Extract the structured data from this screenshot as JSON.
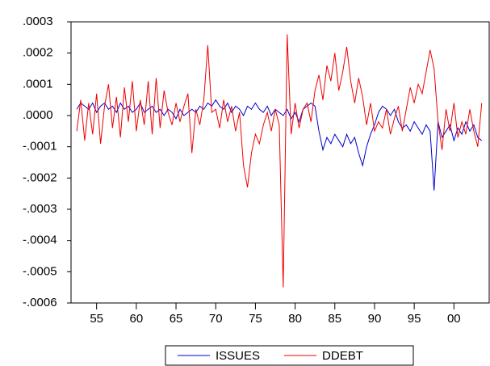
{
  "chart_data": {
    "type": "line",
    "x": [
      52.5,
      53,
      53.5,
      54,
      54.5,
      55,
      55.5,
      56,
      56.5,
      57,
      57.5,
      58,
      58.5,
      59,
      59.5,
      60,
      60.5,
      61,
      61.5,
      62,
      62.5,
      63,
      63.5,
      64,
      64.5,
      65,
      65.5,
      66,
      66.5,
      67,
      67.5,
      68,
      68.5,
      69,
      69.5,
      70,
      70.5,
      71,
      71.5,
      72,
      72.5,
      73,
      73.5,
      74,
      74.5,
      75,
      75.5,
      76,
      76.5,
      77,
      77.5,
      78,
      78.5,
      79,
      79.5,
      80,
      80.5,
      81,
      81.5,
      82,
      82.5,
      83,
      83.5,
      84,
      84.5,
      85,
      85.5,
      86,
      86.5,
      87,
      87.5,
      88,
      88.5,
      89,
      89.5,
      90,
      90.5,
      91,
      91.5,
      92,
      92.5,
      93,
      93.5,
      94,
      94.5,
      95,
      95.5,
      96,
      96.5,
      97,
      97.5,
      98,
      98.5,
      99,
      99.5,
      100,
      100.5,
      101,
      101.5,
      102,
      102.5,
      103,
      103.5
    ],
    "series": [
      {
        "name": "ISSUES",
        "color": "#0000cc",
        "values": [
          2e-05,
          4e-05,
          3e-05,
          2e-05,
          4e-05,
          1e-05,
          3e-05,
          4e-05,
          2e-05,
          3e-05,
          1e-05,
          4e-05,
          2e-05,
          3e-05,
          1e-05,
          2e-05,
          4e-05,
          1e-05,
          2e-05,
          3e-05,
          1e-05,
          2e-05,
          0,
          2e-05,
          1e-05,
          -1e-05,
          2e-05,
          0,
          1e-05,
          2e-05,
          1e-05,
          3e-05,
          2e-05,
          4e-05,
          3e-05,
          5e-05,
          3e-05,
          2e-05,
          4e-05,
          1e-05,
          3e-05,
          2e-05,
          0,
          3e-05,
          2e-05,
          4e-05,
          2e-05,
          1e-05,
          3e-05,
          0,
          2e-05,
          1e-05,
          0,
          2e-05,
          -1e-05,
          1e-05,
          -2e-05,
          2e-05,
          3e-05,
          4e-05,
          3e-05,
          -5e-05,
          -0.00011,
          -7e-05,
          -9e-05,
          -6e-05,
          -8e-05,
          -0.0001,
          -6e-05,
          -9e-05,
          -7e-05,
          -0.00012,
          -0.00016,
          -0.0001,
          -6e-05,
          -3e-05,
          1e-05,
          3e-05,
          2e-05,
          0,
          2e-05,
          -2e-05,
          -4e-05,
          -3e-05,
          -5e-05,
          -2e-05,
          -4e-05,
          -6e-05,
          -3e-05,
          -5e-05,
          -0.00024,
          -2e-05,
          -7e-05,
          -5e-05,
          -3e-05,
          -8e-05,
          -4e-05,
          -6e-05,
          -2e-05,
          -5e-05,
          -3e-05,
          -7e-05,
          -8e-05
        ]
      },
      {
        "name": "DDEBT",
        "color": "#ee0000",
        "values": [
          -5e-05,
          5e-05,
          -8e-05,
          4e-05,
          -6e-05,
          7e-05,
          -9e-05,
          3e-05,
          0.0001,
          -4e-05,
          6e-05,
          -7e-05,
          9e-05,
          -2e-05,
          0.00011,
          -5e-05,
          5e-05,
          -3e-05,
          0.00011,
          -6e-05,
          0.00012,
          -4e-05,
          8e-05,
          1e-05,
          -3e-05,
          4e-05,
          -2e-05,
          3e-05,
          7e-05,
          -0.00012,
          2e-05,
          -3e-05,
          5e-05,
          0.000225,
          1e-05,
          2e-05,
          -4e-05,
          5e-05,
          -2e-05,
          3e-05,
          -5e-05,
          1e-05,
          -0.00016,
          -0.00023,
          -0.00012,
          -6e-05,
          -9e-05,
          -3e-05,
          1e-05,
          -5e-05,
          2e-05,
          -3e-05,
          -0.00055,
          0.00026,
          -6e-05,
          4e-05,
          -4e-05,
          2e-05,
          4e-05,
          -2e-05,
          8e-05,
          0.00013,
          5e-05,
          0.00016,
          0.00011,
          0.0002,
          8e-05,
          0.00014,
          0.00022,
          0.00011,
          4e-05,
          0.00012,
          6e-05,
          -3e-05,
          4e-05,
          -5e-05,
          -2e-05,
          -4e-05,
          2e-05,
          -6e-05,
          -1e-05,
          3e-05,
          -5e-05,
          2e-05,
          9e-05,
          4e-05,
          0.0001,
          7e-05,
          0.00014,
          0.00021,
          0.00015,
          -2e-05,
          -0.00011,
          2e-05,
          -5e-05,
          4e-05,
          -7e-05,
          -2e-05,
          -6e-05,
          2e-05,
          -5e-05,
          -0.0001,
          4e-05
        ]
      }
    ],
    "xlim": [
      51.78,
      104.44
    ],
    "xticks": [
      55,
      60,
      65,
      70,
      75,
      80,
      85,
      90,
      95,
      {
        "value": 100,
        "label": "00"
      }
    ],
    "ylim": [
      -0.0006,
      0.0003
    ],
    "yticks": [
      {
        "value": 0.0003,
        "label": ".0003"
      },
      {
        "value": 0.0002,
        "label": ".0002"
      },
      {
        "value": 0.0001,
        "label": ".0001"
      },
      {
        "value": 0,
        "label": ".0000"
      },
      {
        "value": -0.0001,
        "label": "-.0001"
      },
      {
        "value": -0.0002,
        "label": "-.0002"
      },
      {
        "value": -0.0003,
        "label": "-.0003"
      },
      {
        "value": -0.0004,
        "label": "-.0004"
      },
      {
        "value": -0.0005,
        "label": "-.0005"
      },
      {
        "value": -0.0006,
        "label": "-.0006"
      }
    ],
    "legend": "bottom"
  }
}
